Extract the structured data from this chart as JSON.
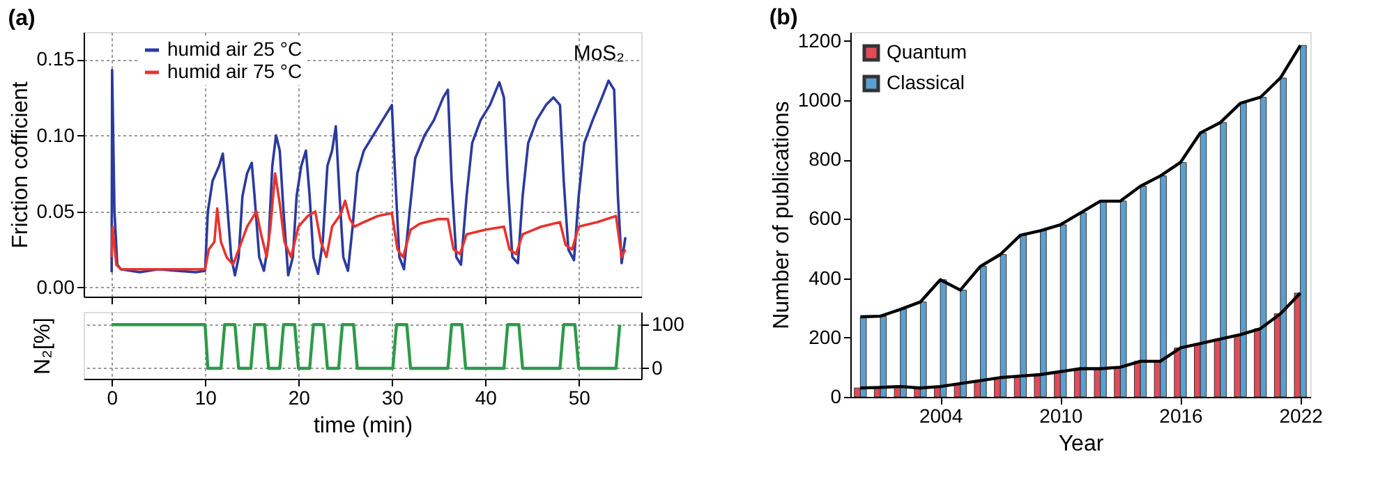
{
  "chart_data": [
    {
      "type": "line",
      "title": "(a)",
      "ylabel": "Friction cofficient",
      "xlim": [
        -3,
        56.7
      ],
      "ylim": [
        -0.006,
        0.168
      ],
      "xticks": [
        0,
        10,
        20,
        30,
        40,
        50
      ],
      "yticks": [
        {
          "value": 0,
          "label": "0.00"
        },
        0.05,
        {
          "value": 0.1,
          "label": "0.10"
        },
        0.15
      ],
      "tick_labels": "y",
      "grid": true,
      "legend": "top left",
      "annotations": [
        "MoS₂"
      ],
      "series": [
        {
          "name": "humid air 25 °C",
          "color": "#2b3a9e",
          "x": [
            0,
            0.05,
            0.3,
            0.6,
            1,
            3,
            5,
            7,
            9,
            10,
            10.3,
            10.8,
            11.5,
            11.9,
            12.3,
            12.8,
            13.2,
            13.6,
            14,
            14.5,
            15,
            15.3,
            15.8,
            16.3,
            16.8,
            17.2,
            17.6,
            18,
            18.4,
            18.9,
            19.4,
            19.8,
            20.3,
            20.8,
            21.2,
            21.6,
            22.1,
            22.6,
            23.1,
            23.6,
            24,
            24.4,
            24.8,
            25.3,
            25.8,
            26.3,
            27,
            28,
            29,
            30,
            30.3,
            30.8,
            31.3,
            31.9,
            32.5,
            33.5,
            34.5,
            35.5,
            36,
            36.4,
            36.9,
            37.4,
            38,
            38.6,
            39.5,
            40.5,
            41.5,
            42,
            42.4,
            42.9,
            43.5,
            44,
            44.6,
            45.5,
            46.5,
            47.3,
            48,
            48.4,
            48.9,
            49.5,
            50,
            50.6,
            51.5,
            52.5,
            53.2,
            53.8,
            54.2,
            54.6,
            55
          ],
          "values": [
            0.01,
            0.143,
            0.05,
            0.015,
            0.012,
            0.01,
            0.012,
            0.011,
            0.01,
            0.011,
            0.05,
            0.07,
            0.08,
            0.088,
            0.06,
            0.02,
            0.008,
            0.02,
            0.06,
            0.075,
            0.082,
            0.06,
            0.02,
            0.011,
            0.03,
            0.08,
            0.1,
            0.09,
            0.05,
            0.008,
            0.02,
            0.06,
            0.08,
            0.09,
            0.06,
            0.02,
            0.009,
            0.03,
            0.08,
            0.09,
            0.106,
            0.06,
            0.02,
            0.011,
            0.04,
            0.075,
            0.09,
            0.1,
            0.11,
            0.12,
            0.08,
            0.02,
            0.012,
            0.05,
            0.085,
            0.1,
            0.11,
            0.125,
            0.13,
            0.07,
            0.02,
            0.015,
            0.06,
            0.095,
            0.11,
            0.12,
            0.135,
            0.125,
            0.07,
            0.02,
            0.016,
            0.06,
            0.095,
            0.11,
            0.12,
            0.125,
            0.12,
            0.07,
            0.025,
            0.018,
            0.06,
            0.095,
            0.11,
            0.125,
            0.136,
            0.13,
            0.06,
            0.016,
            0.033
          ]
        },
        {
          "name": "humid air 75 °C",
          "color": "#e8332e",
          "x": [
            0,
            0.1,
            0.5,
            1,
            5,
            10,
            10.4,
            11,
            11.3,
            11.7,
            12.3,
            13,
            13.6,
            14.5,
            15.5,
            16,
            16.6,
            17,
            17.5,
            18,
            18.5,
            19.2,
            20,
            21,
            21.8,
            22.4,
            23,
            23.6,
            24.5,
            25,
            25.5,
            26,
            27,
            28.5,
            30,
            30.6,
            31.2,
            32,
            33,
            35,
            36,
            36.6,
            37.3,
            38,
            40,
            42,
            42.6,
            43.3,
            44,
            46,
            48,
            48.6,
            49.3,
            50,
            52,
            54,
            54.6,
            55
          ],
          "values": [
            0.02,
            0.04,
            0.015,
            0.012,
            0.012,
            0.012,
            0.025,
            0.03,
            0.052,
            0.03,
            0.02,
            0.015,
            0.025,
            0.04,
            0.05,
            0.035,
            0.02,
            0.04,
            0.075,
            0.055,
            0.03,
            0.02,
            0.04,
            0.047,
            0.05,
            0.03,
            0.02,
            0.04,
            0.048,
            0.057,
            0.045,
            0.04,
            0.043,
            0.047,
            0.049,
            0.025,
            0.02,
            0.038,
            0.042,
            0.045,
            0.045,
            0.025,
            0.022,
            0.035,
            0.038,
            0.04,
            0.025,
            0.022,
            0.035,
            0.04,
            0.043,
            0.028,
            0.025,
            0.04,
            0.043,
            0.047,
            0.02,
            0.025
          ]
        }
      ]
    },
    {
      "type": "line",
      "xlabel": "time (min)",
      "ylabel": "N₂[%]",
      "xlim": [
        -3,
        56.7
      ],
      "ylim": [
        -24,
        129
      ],
      "xticks": [
        0,
        10,
        20,
        30,
        40,
        50
      ],
      "yticks": [
        0,
        100
      ],
      "grid": true,
      "series": [
        {
          "color": "#2e9a4a",
          "x": [
            0,
            10,
            10.3,
            11.7,
            12.1,
            13.2,
            13.6,
            14.9,
            15.3,
            16.4,
            16.8,
            18,
            18.4,
            19.6,
            20,
            21.2,
            21.6,
            22.7,
            23.1,
            24.3,
            24.7,
            25.9,
            26.3,
            30.1,
            30.5,
            31.6,
            32,
            36,
            36.4,
            37.5,
            37.9,
            42,
            42.4,
            43.6,
            44,
            48,
            48.4,
            49.6,
            50,
            54,
            54.4
          ],
          "values": [
            100,
            100,
            0,
            0,
            100,
            100,
            0,
            0,
            100,
            100,
            0,
            0,
            100,
            100,
            0,
            0,
            100,
            100,
            0,
            0,
            100,
            100,
            0,
            0,
            100,
            100,
            0,
            0,
            100,
            100,
            0,
            0,
            100,
            100,
            0,
            0,
            100,
            100,
            0,
            0,
            100
          ]
        }
      ]
    },
    {
      "type": "bar",
      "title": "(b)",
      "xlabel": "Year",
      "ylabel": "Number of publications",
      "xlim": [
        1999.5,
        2022.5
      ],
      "ylim": [
        0,
        1230
      ],
      "xticks": [
        2004,
        2010,
        2016,
        2022
      ],
      "yticks": [
        0,
        200,
        400,
        600,
        800,
        1000,
        1200
      ],
      "legend": "top left",
      "x": [
        2000,
        2001,
        2002,
        2003,
        2004,
        2005,
        2006,
        2007,
        2008,
        2009,
        2010,
        2011,
        2012,
        2013,
        2014,
        2015,
        2016,
        2017,
        2018,
        2019,
        2020,
        2021,
        2022
      ],
      "series": [
        {
          "name": "Quantum",
          "color": "#e34a5a",
          "values": [
            30,
            32,
            35,
            30,
            35,
            45,
            55,
            65,
            70,
            75,
            85,
            95,
            95,
            100,
            120,
            120,
            165,
            180,
            195,
            210,
            230,
            280,
            350
          ]
        },
        {
          "name": "Classical",
          "color": "#5b9fd0",
          "values": [
            270,
            272,
            295,
            320,
            395,
            360,
            440,
            480,
            545,
            560,
            580,
            620,
            660,
            660,
            710,
            745,
            790,
            890,
            925,
            990,
            1010,
            1075,
            1185
          ]
        },
        {
          "type": "line",
          "color": "#000000",
          "values": [
            30,
            32,
            35,
            30,
            35,
            45,
            55,
            65,
            70,
            75,
            85,
            95,
            95,
            100,
            120,
            120,
            165,
            180,
            195,
            210,
            230,
            280,
            350
          ]
        },
        {
          "type": "line",
          "color": "#000000",
          "values": [
            270,
            272,
            295,
            320,
            395,
            360,
            440,
            480,
            545,
            560,
            580,
            620,
            660,
            660,
            710,
            745,
            790,
            890,
            925,
            990,
            1010,
            1075,
            1185
          ]
        }
      ]
    }
  ]
}
